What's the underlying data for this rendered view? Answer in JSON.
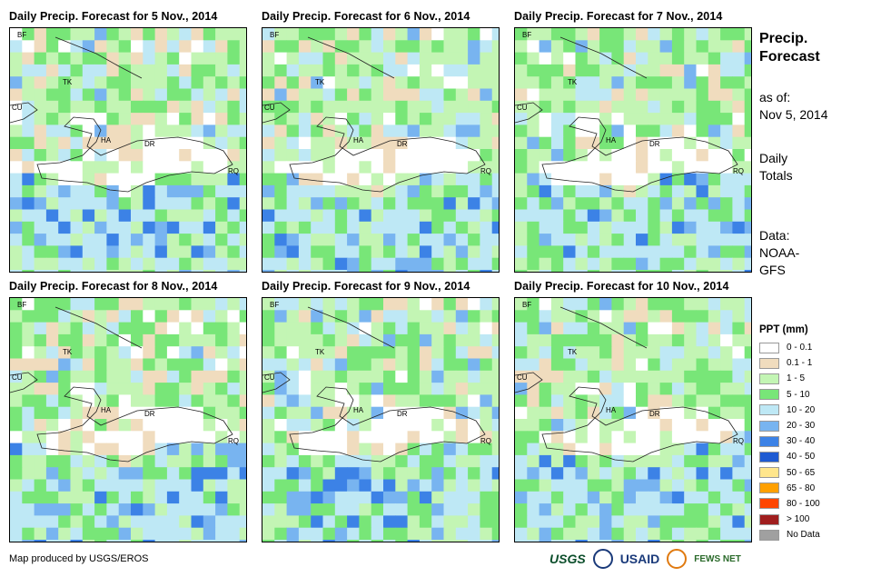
{
  "panels": [
    {
      "title": "Daily Precip. Forecast for 5 Nov., 2014",
      "seed": 5,
      "heavy": []
    },
    {
      "title": "Daily Precip. Forecast for 6 Nov., 2014",
      "seed": 6,
      "heavy": []
    },
    {
      "title": "Daily Precip. Forecast for 7 Nov., 2014",
      "seed": 7,
      "heavy": []
    },
    {
      "title": "Daily Precip. Forecast for 8 Nov., 2014",
      "seed": 8,
      "heavy": []
    },
    {
      "title": "Daily Precip. Forecast for 9 Nov., 2014",
      "seed": 9,
      "heavy": []
    },
    {
      "title": "Daily Precip. Forecast for 10 Nov., 2014",
      "seed": 10,
      "heavy": []
    }
  ],
  "map_labels": [
    "BF",
    "TK",
    "CU",
    "HA",
    "DR",
    "RQ"
  ],
  "side": {
    "title_line1": "Precip.",
    "title_line2": "Forecast",
    "asof_line1": "as of:",
    "asof_line2": "Nov 5, 2014",
    "daily_line1": "Daily",
    "daily_line2": "Totals",
    "data_line1": "Data:",
    "data_line2": "NOAA-",
    "data_line3": "GFS"
  },
  "legend": {
    "title": "PPT (mm)",
    "items": [
      {
        "label": "0 - 0.1",
        "color": "#ffffff"
      },
      {
        "label": "0.1 - 1",
        "color": "#f0dcbe"
      },
      {
        "label": "1 - 5",
        "color": "#c3f5b4"
      },
      {
        "label": "5 - 10",
        "color": "#78e678"
      },
      {
        "label": "10 - 20",
        "color": "#bee8f5"
      },
      {
        "label": "20 - 30",
        "color": "#78b4f0"
      },
      {
        "label": "30 - 40",
        "color": "#3c82e6"
      },
      {
        "label": "40 - 50",
        "color": "#1e5ad2"
      },
      {
        "label": "50 - 65",
        "color": "#ffe68c"
      },
      {
        "label": "65 - 80",
        "color": "#ffa000"
      },
      {
        "label": "80 - 100",
        "color": "#ff4600"
      },
      {
        "label": "> 100",
        "color": "#a01e1e"
      },
      {
        "label": "No Data",
        "color": "#a0a0a0"
      }
    ]
  },
  "credit": "Map produced by USGS/EROS",
  "logos": {
    "usgs": "USGS",
    "usaid": "USAID",
    "fews": "FEWS NET"
  }
}
